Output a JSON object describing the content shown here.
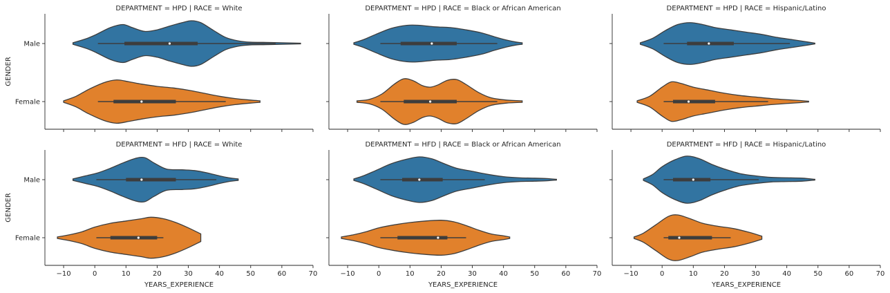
{
  "chart_data": {
    "type": "violin",
    "x_axis": {
      "label": "YEARS_EXPERIENCE",
      "lim": [
        -16,
        70
      ],
      "ticks": [
        -10,
        0,
        10,
        20,
        30,
        40,
        50,
        60,
        70
      ],
      "tick_labels": [
        "−10",
        "0",
        "10",
        "20",
        "30",
        "40",
        "50",
        "60",
        "70"
      ]
    },
    "y_axis": {
      "label": "GENDER",
      "categories": [
        "Male",
        "Female"
      ]
    },
    "colors": {
      "Male": "#3274a1",
      "Female": "#e1812c",
      "outline": "#3d3d3d",
      "box": "#3d3d3d",
      "median": "#ffffff"
    },
    "grid": false,
    "panels": [
      {
        "title": "DEPARTMENT = HPD | RACE = White",
        "violins": [
          {
            "gender": "Male",
            "min": -7,
            "max": 66,
            "whisker_low": 1,
            "whisker_high": 58,
            "q1": 9.5,
            "median": 24,
            "q3": 33,
            "profile": [
              [
                -7,
                0.02
              ],
              [
                -3,
                0.12
              ],
              [
                0,
                0.22
              ],
              [
                5,
                0.42
              ],
              [
                9,
                0.5
              ],
              [
                12,
                0.42
              ],
              [
                16,
                0.32
              ],
              [
                20,
                0.36
              ],
              [
                24,
                0.46
              ],
              [
                28,
                0.55
              ],
              [
                31,
                0.6
              ],
              [
                34,
                0.55
              ],
              [
                38,
                0.35
              ],
              [
                42,
                0.16
              ],
              [
                46,
                0.07
              ],
              [
                50,
                0.035
              ],
              [
                55,
                0.03
              ],
              [
                60,
                0.02
              ],
              [
                66,
                0.01
              ]
            ]
          },
          {
            "gender": "Female",
            "min": -10,
            "max": 53,
            "whisker_low": 1,
            "whisker_high": 42,
            "q1": 6,
            "median": 15,
            "q3": 26,
            "profile": [
              [
                -10,
                0.02
              ],
              [
                -6,
                0.14
              ],
              [
                -2,
                0.32
              ],
              [
                3,
                0.5
              ],
              [
                7,
                0.57
              ],
              [
                11,
                0.52
              ],
              [
                15,
                0.46
              ],
              [
                20,
                0.4
              ],
              [
                25,
                0.36
              ],
              [
                30,
                0.3
              ],
              [
                35,
                0.22
              ],
              [
                40,
                0.14
              ],
              [
                45,
                0.08
              ],
              [
                50,
                0.04
              ],
              [
                53,
                0.02
              ]
            ]
          }
        ]
      },
      {
        "title": "DEPARTMENT = HPD | RACE = Black or African American",
        "violins": [
          {
            "gender": "Male",
            "min": -8,
            "max": 46,
            "whisker_low": 0.5,
            "whisker_high": 38,
            "q1": 7,
            "median": 17,
            "q3": 25,
            "profile": [
              [
                -8,
                0.02
              ],
              [
                -5,
                0.1
              ],
              [
                -1,
                0.24
              ],
              [
                4,
                0.4
              ],
              [
                9,
                0.48
              ],
              [
                13,
                0.48
              ],
              [
                18,
                0.44
              ],
              [
                23,
                0.42
              ],
              [
                28,
                0.36
              ],
              [
                33,
                0.28
              ],
              [
                37,
                0.18
              ],
              [
                41,
                0.09
              ],
              [
                44,
                0.04
              ],
              [
                46,
                0.02
              ]
            ]
          },
          {
            "gender": "Female",
            "min": -7,
            "max": 46,
            "whisker_low": 0.5,
            "whisker_high": 38,
            "q1": 8,
            "median": 16.5,
            "q3": 25,
            "profile": [
              [
                -7,
                0.02
              ],
              [
                -3,
                0.06
              ],
              [
                1,
                0.2
              ],
              [
                5,
                0.46
              ],
              [
                8,
                0.6
              ],
              [
                11,
                0.55
              ],
              [
                14,
                0.42
              ],
              [
                16.5,
                0.38
              ],
              [
                19,
                0.44
              ],
              [
                22,
                0.56
              ],
              [
                25,
                0.58
              ],
              [
                28,
                0.45
              ],
              [
                32,
                0.24
              ],
              [
                36,
                0.1
              ],
              [
                41,
                0.04
              ],
              [
                46,
                0.02
              ]
            ]
          }
        ]
      },
      {
        "title": "DEPARTMENT = HPD | RACE = Hispanic/Latino",
        "violins": [
          {
            "gender": "Male",
            "min": -7,
            "max": 49,
            "whisker_low": 0.5,
            "whisker_high": 41,
            "q1": 8,
            "median": 15,
            "q3": 23,
            "profile": [
              [
                -7,
                0.02
              ],
              [
                -3,
                0.14
              ],
              [
                1,
                0.34
              ],
              [
                5,
                0.5
              ],
              [
                9,
                0.55
              ],
              [
                13,
                0.5
              ],
              [
                17,
                0.42
              ],
              [
                22,
                0.36
              ],
              [
                27,
                0.3
              ],
              [
                32,
                0.24
              ],
              [
                37,
                0.16
              ],
              [
                42,
                0.1
              ],
              [
                46,
                0.05
              ],
              [
                49,
                0.01
              ]
            ]
          },
          {
            "gender": "Female",
            "min": -8,
            "max": 47,
            "whisker_low": 0.5,
            "whisker_high": 34,
            "q1": 3.5,
            "median": 8.5,
            "q3": 17,
            "profile": [
              [
                -8,
                0.02
              ],
              [
                -4,
                0.14
              ],
              [
                0,
                0.38
              ],
              [
                3,
                0.52
              ],
              [
                6,
                0.48
              ],
              [
                10,
                0.38
              ],
              [
                15,
                0.3
              ],
              [
                20,
                0.22
              ],
              [
                25,
                0.16
              ],
              [
                30,
                0.12
              ],
              [
                35,
                0.08
              ],
              [
                40,
                0.05
              ],
              [
                44,
                0.03
              ],
              [
                47,
                0.01
              ]
            ]
          }
        ]
      },
      {
        "title": "DEPARTMENT = HFD | RACE = White",
        "violins": [
          {
            "gender": "Male",
            "min": -7,
            "max": 46,
            "whisker_low": 0.5,
            "whisker_high": 39,
            "q1": 10,
            "median": 15,
            "q3": 26,
            "profile": [
              [
                -7,
                0.02
              ],
              [
                -3,
                0.1
              ],
              [
                1,
                0.18
              ],
              [
                5,
                0.3
              ],
              [
                9,
                0.44
              ],
              [
                13,
                0.56
              ],
              [
                16,
                0.58
              ],
              [
                19,
                0.44
              ],
              [
                23,
                0.28
              ],
              [
                28,
                0.26
              ],
              [
                32,
                0.24
              ],
              [
                36,
                0.18
              ],
              [
                40,
                0.1
              ],
              [
                43,
                0.05
              ],
              [
                46,
                0.02
              ]
            ]
          },
          {
            "gender": "Female",
            "min": -12,
            "max": 34,
            "whisker_low": 0.5,
            "whisker_high": 22,
            "q1": 5,
            "median": 14,
            "q3": 20,
            "profile": [
              [
                -12,
                0.02
              ],
              [
                -8,
                0.08
              ],
              [
                -4,
                0.16
              ],
              [
                0,
                0.28
              ],
              [
                5,
                0.38
              ],
              [
                10,
                0.44
              ],
              [
                15,
                0.5
              ],
              [
                18,
                0.54
              ],
              [
                22,
                0.5
              ],
              [
                26,
                0.4
              ],
              [
                30,
                0.26
              ],
              [
                34,
                0.1
              ]
            ]
          }
        ]
      },
      {
        "title": "DEPARTMENT = HFD | RACE = Black or African American",
        "violins": [
          {
            "gender": "Male",
            "min": -8,
            "max": 57,
            "whisker_low": 0.5,
            "whisker_high": 34,
            "q1": 7.5,
            "median": 13,
            "q3": 20.5,
            "profile": [
              [
                -8,
                0.02
              ],
              [
                -5,
                0.1
              ],
              [
                -1,
                0.24
              ],
              [
                4,
                0.42
              ],
              [
                9,
                0.54
              ],
              [
                13,
                0.6
              ],
              [
                17,
                0.55
              ],
              [
                21,
                0.42
              ],
              [
                25,
                0.3
              ],
              [
                30,
                0.22
              ],
              [
                35,
                0.14
              ],
              [
                40,
                0.08
              ],
              [
                45,
                0.05
              ],
              [
                50,
                0.04
              ],
              [
                54,
                0.03
              ],
              [
                57,
                0.01
              ]
            ]
          },
          {
            "gender": "Female",
            "min": -12,
            "max": 42,
            "whisker_low": 0.5,
            "whisker_high": 28,
            "q1": 6,
            "median": 19,
            "q3": 22,
            "profile": [
              [
                -12,
                0.02
              ],
              [
                -8,
                0.08
              ],
              [
                -4,
                0.16
              ],
              [
                0,
                0.26
              ],
              [
                5,
                0.34
              ],
              [
                10,
                0.4
              ],
              [
                15,
                0.44
              ],
              [
                20,
                0.46
              ],
              [
                24,
                0.42
              ],
              [
                28,
                0.32
              ],
              [
                32,
                0.2
              ],
              [
                36,
                0.1
              ],
              [
                40,
                0.05
              ],
              [
                42,
                0.02
              ]
            ]
          }
        ]
      },
      {
        "title": "DEPARTMENT = HFD | RACE = Hispanic/Latino",
        "violins": [
          {
            "gender": "Male",
            "min": -6,
            "max": 49,
            "whisker_low": 0.5,
            "whisker_high": 31,
            "q1": 3.5,
            "median": 10,
            "q3": 15.5,
            "profile": [
              [
                -6,
                0.02
              ],
              [
                -3,
                0.14
              ],
              [
                0,
                0.34
              ],
              [
                4,
                0.52
              ],
              [
                8,
                0.62
              ],
              [
                12,
                0.55
              ],
              [
                16,
                0.4
              ],
              [
                20,
                0.28
              ],
              [
                25,
                0.16
              ],
              [
                30,
                0.1
              ],
              [
                35,
                0.06
              ],
              [
                40,
                0.05
              ],
              [
                45,
                0.04
              ],
              [
                49,
                0.01
              ]
            ]
          },
          {
            "gender": "Female",
            "min": -9,
            "max": 32,
            "whisker_low": 0.5,
            "whisker_high": 22,
            "q1": 2,
            "median": 5.5,
            "q3": 16,
            "profile": [
              [
                -9,
                0.02
              ],
              [
                -6,
                0.12
              ],
              [
                -2,
                0.34
              ],
              [
                2,
                0.56
              ],
              [
                5,
                0.6
              ],
              [
                9,
                0.5
              ],
              [
                13,
                0.38
              ],
              [
                18,
                0.3
              ],
              [
                23,
                0.24
              ],
              [
                28,
                0.14
              ],
              [
                32,
                0.04
              ]
            ]
          }
        ]
      }
    ]
  }
}
